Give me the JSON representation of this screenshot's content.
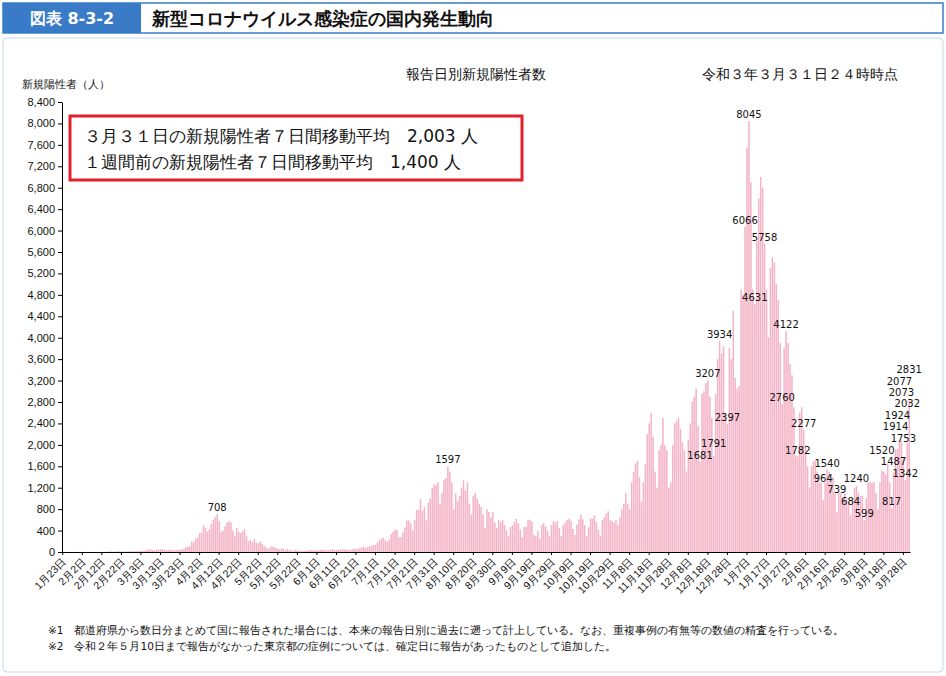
{
  "chart_data": {
    "type": "bar",
    "figure_number": "図表 8-3-2",
    "title": "新型コロナウイルス感染症の国内発生動向",
    "subtitle": "報告日別新規陽性者数",
    "y_label": "新規陽性者（人）",
    "annotations": [
      "令和３年３月３１日２４時時点",
      "３月３１日の新規陽性者７日間移動平均　2,003 人",
      "１週間前の新規陽性者７日間移動平均　1,400 人"
    ],
    "notes": [
      "※1　都道府県から数日分まとめて国に報告された場合には、本来の報告日別に過去に遡って計上している。なお、重複事例の有無等の数値の精査を行っている。",
      "※2　令和２年５月10日まで報告がなかった東京都の症例については、確定日に報告があったものとして追加した。"
    ],
    "color": "#f4b3c6",
    "grid": false,
    "data_labels": true,
    "ylim": [
      0,
      8400
    ],
    "yticks": [
      0,
      400,
      800,
      {
        "value": 1200,
        "label": "1,200"
      },
      {
        "value": 1600,
        "label": "1,600"
      },
      {
        "value": 2000,
        "label": "2,000"
      },
      {
        "value": 2400,
        "label": "2,400"
      },
      {
        "value": 2800,
        "label": "2,800"
      },
      {
        "value": 3200,
        "label": "3,200"
      },
      {
        "value": 3600,
        "label": "3,600"
      },
      {
        "value": 4000,
        "label": "4,000"
      },
      {
        "value": 4400,
        "label": "4,400"
      },
      {
        "value": 4800,
        "label": "4,800"
      },
      {
        "value": 5200,
        "label": "5,200"
      },
      {
        "value": 5600,
        "label": "5,600"
      },
      {
        "value": 6000,
        "label": "6,000"
      },
      {
        "value": 6400,
        "label": "6,400"
      },
      {
        "value": 6800,
        "label": "6,800"
      },
      {
        "value": 7200,
        "label": "7,200"
      },
      {
        "value": 7600,
        "label": "7,600"
      },
      {
        "value": 8000,
        "label": "8,000"
      },
      {
        "value": 8400,
        "label": "8,400"
      }
    ],
    "categories": [
      "1月23日",
      null,
      null,
      null,
      null,
      null,
      null,
      null,
      null,
      null,
      "2月2日",
      null,
      null,
      null,
      null,
      null,
      null,
      null,
      null,
      null,
      "2月12日",
      null,
      null,
      null,
      null,
      null,
      null,
      null,
      null,
      null,
      "2月22日",
      null,
      null,
      null,
      null,
      null,
      null,
      null,
      null,
      null,
      "3月3日",
      null,
      null,
      null,
      null,
      null,
      null,
      null,
      null,
      null,
      "3月13日",
      null,
      null,
      null,
      null,
      null,
      null,
      null,
      null,
      null,
      "3月23日",
      null,
      null,
      null,
      null,
      null,
      null,
      null,
      null,
      null,
      "4月2日",
      null,
      null,
      null,
      null,
      null,
      null,
      null,
      null,
      null,
      "4月12日",
      null,
      null,
      null,
      null,
      null,
      null,
      null,
      null,
      null,
      "4月22日",
      null,
      null,
      null,
      null,
      null,
      null,
      null,
      null,
      null,
      "5月2日",
      null,
      null,
      null,
      null,
      null,
      null,
      null,
      null,
      null,
      "5月12日",
      null,
      null,
      null,
      null,
      null,
      null,
      null,
      null,
      null,
      "5月22日",
      null,
      null,
      null,
      null,
      null,
      null,
      null,
      null,
      null,
      "6月1日",
      null,
      null,
      null,
      null,
      null,
      null,
      null,
      null,
      null,
      "6月11日",
      null,
      null,
      null,
      null,
      null,
      null,
      null,
      null,
      null,
      "6月21日",
      null,
      null,
      null,
      null,
      null,
      null,
      null,
      null,
      null,
      "7月1日",
      null,
      null,
      null,
      null,
      null,
      null,
      null,
      null,
      null,
      "7月11日",
      null,
      null,
      null,
      null,
      null,
      null,
      null,
      null,
      null,
      "7月21日",
      null,
      null,
      null,
      null,
      null,
      null,
      null,
      null,
      null,
      "7月31日",
      null,
      null,
      null,
      null,
      null,
      null,
      null,
      null,
      null,
      "8月10日",
      null,
      null,
      null,
      null,
      null,
      null,
      null,
      null,
      null,
      "8月20日",
      null,
      null,
      null,
      null,
      null,
      null,
      null,
      null,
      null,
      "8月30日",
      null,
      null,
      null,
      null,
      null,
      null,
      null,
      null,
      null,
      "9月9日",
      null,
      null,
      null,
      null,
      null,
      null,
      null,
      null,
      null,
      "9月19日",
      null,
      null,
      null,
      null,
      null,
      null,
      null,
      null,
      null,
      "9月29日",
      null,
      null,
      null,
      null,
      null,
      null,
      null,
      null,
      null,
      "10月9日",
      null,
      null,
      null,
      null,
      null,
      null,
      null,
      null,
      null,
      "10月19日",
      null,
      null,
      null,
      null,
      null,
      null,
      null,
      null,
      null,
      "10月29日",
      null,
      null,
      null,
      null,
      null,
      null,
      null,
      null,
      null,
      "11月8日",
      null,
      null,
      null,
      null,
      null,
      null,
      null,
      null,
      null,
      "11月18日",
      null,
      null,
      null,
      null,
      null,
      null,
      null,
      null,
      null,
      "11月28日",
      null,
      null,
      null,
      null,
      null,
      null,
      null,
      null,
      null,
      "12月8日",
      null,
      null,
      null,
      null,
      null,
      null,
      null,
      null,
      null,
      "12月18日",
      null,
      null,
      null,
      null,
      null,
      null,
      null,
      null,
      null,
      "12月28日",
      null,
      null,
      null,
      null,
      null,
      null,
      null,
      null,
      null,
      "1月7日",
      null,
      null,
      null,
      null,
      null,
      null,
      null,
      null,
      null,
      "1月17日",
      null,
      null,
      null,
      null,
      null,
      null,
      null,
      null,
      null,
      "1月27日",
      null,
      null,
      null,
      null,
      null,
      null,
      null,
      null,
      null,
      "2月6日",
      null,
      null,
      null,
      null,
      null,
      null,
      null,
      null,
      null,
      "2月16日",
      null,
      null,
      null,
      null,
      null,
      null,
      null,
      null,
      null,
      "2月26日",
      null,
      null,
      null,
      null,
      null,
      null,
      null,
      null,
      null,
      "3月8日",
      null,
      null,
      null,
      null,
      null,
      null,
      null,
      null,
      null,
      "3月18日",
      null,
      null,
      null,
      null,
      null,
      null,
      null,
      null,
      null,
      "3月28日",
      null,
      null,
      null
    ],
    "values": [
      0,
      1,
      0,
      0,
      1,
      1,
      3,
      2,
      3,
      3,
      2,
      0,
      1,
      0,
      1,
      0,
      1,
      3,
      1,
      0,
      1,
      4,
      0,
      10,
      6,
      9,
      4,
      11,
      9,
      14,
      9,
      17,
      7,
      11,
      15,
      14,
      10,
      19,
      15,
      18,
      20,
      28,
      26,
      40,
      52,
      43,
      35,
      30,
      40,
      52,
      50,
      58,
      45,
      40,
      35,
      42,
      38,
      30,
      38,
      40,
      42,
      45,
      60,
      90,
      98,
      110,
      200,
      180,
      250,
      270,
      350,
      360,
      500,
      450,
      380,
      420,
      520,
      600,
      650,
      708,
      580,
      380,
      400,
      480,
      550,
      580,
      550,
      400,
      300,
      450,
      380,
      350,
      390,
      430,
      300,
      200,
      220,
      180,
      240,
      170,
      160,
      200,
      150,
      120,
      90,
      60,
      80,
      110,
      90,
      80,
      60,
      50,
      70,
      55,
      40,
      60,
      35,
      30,
      20,
      40,
      30,
      25,
      20,
      15,
      20,
      30,
      35,
      40,
      30,
      40,
      30,
      35,
      45,
      40,
      40,
      30,
      40,
      45,
      55,
      40,
      35,
      50,
      40,
      55,
      50,
      45,
      40,
      35,
      50,
      55,
      60,
      55,
      80,
      90,
      100,
      75,
      90,
      110,
      120,
      130,
      130,
      180,
      230,
      250,
      270,
      220,
      200,
      230,
      330,
      380,
      420,
      410,
      270,
      280,
      360,
      460,
      590,
      590,
      530,
      400,
      600,
      780,
      790,
      990,
      770,
      840,
      590,
      920,
      1000,
      1200,
      1260,
      1250,
      1300,
      900,
      1100,
      1350,
      1380,
      1597,
      1500,
      1300,
      800,
      1100,
      950,
      1050,
      1200,
      1350,
      1150,
      1300,
      900,
      700,
      1050,
      1100,
      1000,
      900,
      850,
      700,
      450,
      800,
      750,
      650,
      750,
      550,
      450,
      600,
      560,
      600,
      500,
      400,
      300,
      460,
      500,
      560,
      620,
      540,
      420,
      270,
      470,
      470,
      600,
      600,
      560,
      320,
      300,
      400,
      250,
      500,
      540,
      480,
      390,
      300,
      500,
      580,
      550,
      580,
      450,
      300,
      500,
      550,
      600,
      620,
      580,
      430,
      320,
      510,
      600,
      700,
      610,
      500,
      300,
      460,
      630,
      620,
      680,
      560,
      410,
      300,
      600,
      650,
      720,
      760,
      600,
      580,
      550,
      600,
      500,
      650,
      800,
      900,
      1100,
      900,
      800,
      1300,
      1500,
      1650,
      1700,
      1400,
      950,
      1300,
      1650,
      2200,
      2400,
      2600,
      2150,
      1500,
      1200,
      1900,
      2000,
      2500,
      2000,
      1900,
      1200,
      1300,
      2000,
      2400,
      2450,
      2500,
      2300,
      2050,
      1900,
      1500,
      2100,
      2400,
      2800,
      2900,
      3050,
      2350,
      1681,
      2950,
      3000,
      3150,
      3207,
      2900,
      2500,
      1791,
      2950,
      3600,
      3934,
      3700,
      3850,
      2600,
      2397,
      3800,
      3600,
      4500,
      3250,
      3050,
      3100,
      4900,
      4800,
      6066,
      7550,
      8045,
      6900,
      4900,
      4631,
      5800,
      6600,
      7000,
      6800,
      5758,
      4900,
      4000,
      5300,
      5500,
      5400,
      5000,
      4700,
      3900,
      2760,
      3800,
      4122,
      3900,
      3500,
      3300,
      2700,
      1800,
      1782,
      2600,
      2700,
      2277,
      2000,
      1600,
      1200,
      1600,
      1700,
      1700,
      1500,
      1300,
      1300,
      964,
      1300,
      1540,
      1500,
      1300,
      1400,
      1100,
      739,
      1100,
      1100,
      1000,
      1100,
      1000,
      950,
      684,
      1000,
      1200,
      1240,
      1100,
      1050,
      1050,
      599,
      1000,
      1300,
      1300,
      1300,
      1300,
      1100,
      800,
      1300,
      1520,
      1500,
      1450,
      1650,
      1300,
      817,
      1487,
      1914,
      1924,
      2077,
      2073,
      1753,
      1342,
      2032,
      2831
    ],
    "value_labels": [
      null,
      null,
      null,
      null,
      null,
      null,
      null,
      null,
      null,
      null,
      null,
      null,
      null,
      null,
      null,
      null,
      null,
      null,
      null,
      null,
      null,
      null,
      null,
      null,
      null,
      null,
      null,
      null,
      null,
      null,
      null,
      null,
      null,
      null,
      null,
      null,
      null,
      null,
      null,
      null,
      null,
      null,
      null,
      null,
      null,
      null,
      null,
      null,
      null,
      null,
      null,
      null,
      null,
      null,
      null,
      null,
      null,
      null,
      null,
      null,
      null,
      null,
      null,
      null,
      null,
      null,
      null,
      null,
      null,
      null,
      null,
      null,
      null,
      null,
      null,
      null,
      null,
      null,
      null,
      "708",
      null,
      null,
      null,
      null,
      null,
      null,
      null,
      null,
      null,
      null,
      null,
      null,
      null,
      null,
      null,
      null,
      null,
      null,
      null,
      null,
      null,
      null,
      null,
      null,
      null,
      null,
      null,
      null,
      null,
      null,
      null,
      null,
      null,
      null,
      null,
      null,
      null,
      null,
      null,
      null,
      null,
      null,
      null,
      null,
      null,
      null,
      null,
      null,
      null,
      null,
      null,
      null,
      null,
      null,
      null,
      null,
      null,
      null,
      null,
      null,
      null,
      null,
      null,
      null,
      null,
      null,
      null,
      null,
      null,
      null,
      null,
      null,
      null,
      null,
      null,
      null,
      null,
      null,
      null,
      null,
      null,
      null,
      null,
      null,
      null,
      null,
      null,
      null,
      null,
      null,
      null,
      null,
      null,
      null,
      null,
      null,
      null,
      null,
      null,
      null,
      null,
      null,
      null,
      null,
      null,
      null,
      null,
      null,
      null,
      null,
      null,
      null,
      null,
      null,
      null,
      null,
      null,
      "1597",
      null,
      null,
      null,
      null,
      null,
      null,
      null,
      null,
      null,
      null,
      null,
      null,
      null,
      null,
      null,
      null,
      null,
      null,
      null,
      null,
      null,
      null,
      null,
      null,
      null,
      null,
      null,
      null,
      null,
      null,
      null,
      null,
      null,
      null,
      null,
      null,
      null,
      null,
      null,
      null,
      null,
      null,
      null,
      null,
      null,
      null,
      null,
      null,
      null,
      null,
      null,
      null,
      null,
      null,
      null,
      null,
      null,
      null,
      null,
      null,
      null,
      null,
      null,
      null,
      null,
      null,
      null,
      null,
      null,
      null,
      null,
      null,
      null,
      null,
      null,
      null,
      null,
      null,
      null,
      null,
      null,
      null,
      null,
      null,
      null,
      null,
      null,
      null,
      null,
      null,
      null,
      null,
      null,
      null,
      null,
      null,
      null,
      null,
      null,
      null,
      null,
      null,
      null,
      null,
      null,
      null,
      null,
      null,
      null,
      null,
      null,
      null,
      null,
      null,
      null,
      null,
      null,
      null,
      null,
      null,
      null,
      null,
      null,
      null,
      null,
      null,
      null,
      null,
      "1681",
      null,
      null,
      null,
      "3207",
      null,
      null,
      "1791",
      null,
      null,
      "3934",
      null,
      null,
      null,
      "2397",
      null,
      null,
      null,
      null,
      null,
      null,
      null,
      null,
      "6066",
      null,
      "8045",
      null,
      null,
      "4631",
      null,
      null,
      null,
      null,
      "5758",
      null,
      null,
      null,
      null,
      null,
      null,
      null,
      null,
      "2760",
      null,
      "4122",
      null,
      null,
      null,
      null,
      null,
      "1782",
      null,
      null,
      "2277",
      null,
      null,
      null,
      null,
      null,
      null,
      null,
      null,
      null,
      "964",
      null,
      "1540",
      null,
      null,
      null,
      null,
      "739",
      null,
      null,
      null,
      null,
      null,
      null,
      "684",
      null,
      null,
      "1240",
      null,
      null,
      null,
      "599",
      null,
      null,
      null,
      null,
      null,
      null,
      null,
      null,
      "1520",
      null,
      null,
      null,
      null,
      "817",
      "1487",
      "1914",
      "1924",
      "2077",
      "2073",
      "1753",
      "1342",
      "2032",
      "2831"
    ]
  }
}
